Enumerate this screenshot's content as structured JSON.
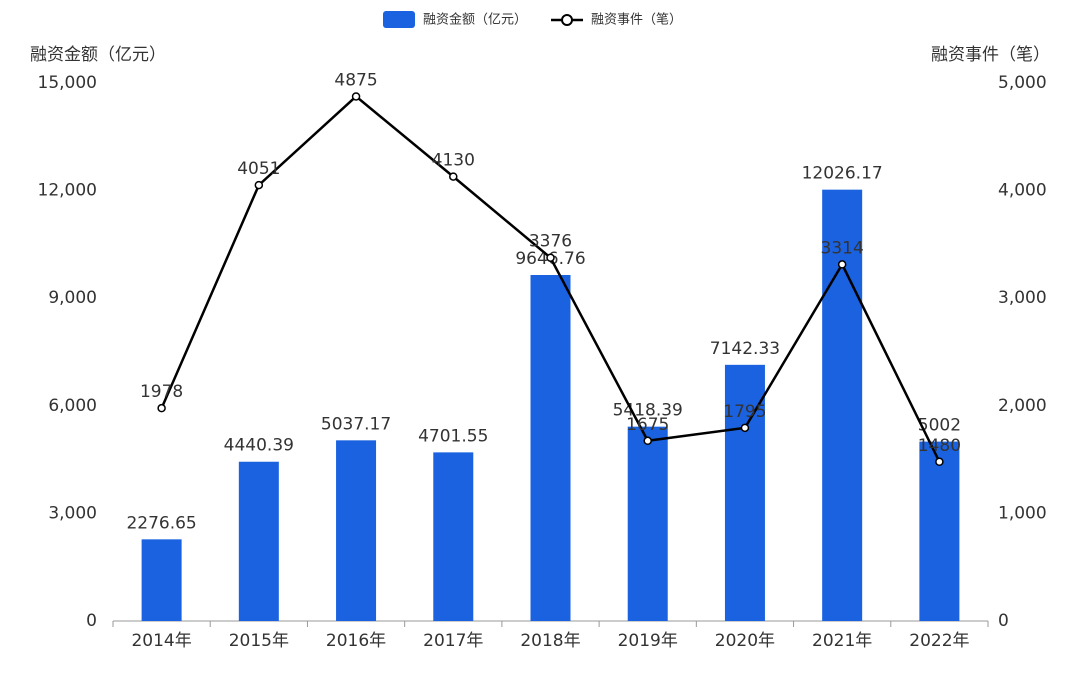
{
  "chart_data": {
    "type": "combo",
    "ylabel": "融资金额（亿元）",
    "y2label": "融资事件（笔）",
    "categories": [
      "2014年",
      "2015年",
      "2016年",
      "2017年",
      "2018年",
      "2019年",
      "2020年",
      "2021年",
      "2022年"
    ],
    "series": [
      {
        "name": "融资金额（亿元）",
        "type": "bar",
        "color": "#1a62e0",
        "axis": "y",
        "values": [
          2276.65,
          4440.39,
          5037.17,
          4701.55,
          9646.76,
          5418.39,
          7142.33,
          12026.17,
          5002
        ]
      },
      {
        "name": "融资事件（笔）",
        "type": "line",
        "color": "#000000",
        "axis": "y2",
        "values": [
          1978,
          4051,
          4875,
          4130,
          3376,
          1675,
          1795,
          3314,
          1480
        ]
      }
    ],
    "ylim": [
      0,
      15000
    ],
    "yticks": [
      0,
      {
        "value": 3000,
        "label": "3,000"
      },
      {
        "value": 6000,
        "label": "6,000"
      },
      {
        "value": 9000,
        "label": "9,000"
      },
      {
        "value": 12000,
        "label": "12,000"
      },
      {
        "value": 15000,
        "label": "15,000"
      }
    ],
    "y2lim": [
      0,
      5000
    ],
    "y2ticks": [
      0,
      {
        "value": 1000,
        "label": "1,000"
      },
      {
        "value": 2000,
        "label": "2,000"
      },
      {
        "value": 3000,
        "label": "3,000"
      },
      {
        "value": 4000,
        "label": "4,000"
      },
      {
        "value": 5000,
        "label": "5,000"
      }
    ],
    "legend": "top"
  }
}
